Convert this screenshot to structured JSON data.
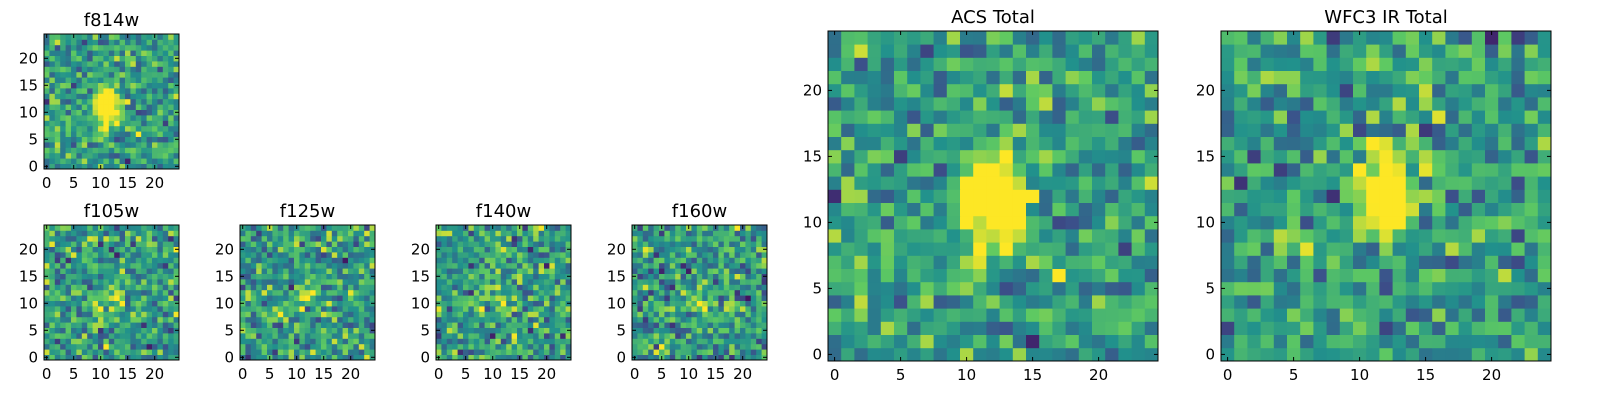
{
  "figure": {
    "colormap": "viridis",
    "colormap_stops": [
      "#440154",
      "#3b528b",
      "#21918c",
      "#5ec962",
      "#fde725"
    ]
  },
  "chart_data": [
    {
      "type": "heatmap",
      "title": "f814w",
      "grid_size": 25,
      "xlim": [
        -0.5,
        24.5
      ],
      "ylim": [
        -0.5,
        24.5
      ],
      "xticks": [
        0,
        5,
        10,
        15,
        20
      ],
      "yticks": [
        0,
        5,
        10,
        15,
        20
      ],
      "xtick_labels": [
        "0",
        "5",
        "10",
        "15",
        "20"
      ],
      "ytick_labels": [
        "0",
        "5",
        "10",
        "15",
        "20"
      ],
      "source": {
        "center": [
          11,
          11.5
        ],
        "sigma": [
          1.5,
          2.2
        ],
        "amplitude": 1.1
      },
      "noise": 0.2,
      "seed": 11
    },
    {
      "type": "heatmap",
      "title": "f105w",
      "grid_size": 25,
      "xlim": [
        -0.5,
        24.5
      ],
      "ylim": [
        -0.5,
        24.5
      ],
      "xticks": [
        0,
        5,
        10,
        15,
        20
      ],
      "yticks": [
        0,
        5,
        10,
        15,
        20
      ],
      "xtick_labels": [
        "0",
        "5",
        "10",
        "15",
        "20"
      ],
      "ytick_labels": [
        "0",
        "5",
        "10",
        "15",
        "20"
      ],
      "source": {
        "center": [
          12,
          10
        ],
        "sigma": [
          1.5,
          2
        ],
        "amplitude": 0.3
      },
      "noise": 0.22,
      "seed": 23
    },
    {
      "type": "heatmap",
      "title": "f125w",
      "grid_size": 25,
      "xlim": [
        -0.5,
        24.5
      ],
      "ylim": [
        -0.5,
        24.5
      ],
      "xticks": [
        0,
        5,
        10,
        15,
        20
      ],
      "yticks": [
        0,
        5,
        10,
        15,
        20
      ],
      "xtick_labels": [
        "0",
        "5",
        "10",
        "15",
        "20"
      ],
      "ytick_labels": [
        "0",
        "5",
        "10",
        "15",
        "20"
      ],
      "source": {
        "center": [
          12,
          12
        ],
        "sigma": [
          1.5,
          2
        ],
        "amplitude": 0.2
      },
      "noise": 0.22,
      "seed": 37
    },
    {
      "type": "heatmap",
      "title": "f140w",
      "grid_size": 25,
      "xlim": [
        -0.5,
        24.5
      ],
      "ylim": [
        -0.5,
        24.5
      ],
      "xticks": [
        0,
        5,
        10,
        15,
        20
      ],
      "yticks": [
        0,
        5,
        10,
        15,
        20
      ],
      "xtick_labels": [
        "0",
        "5",
        "10",
        "15",
        "20"
      ],
      "ytick_labels": [
        "0",
        "5",
        "10",
        "15",
        "20"
      ],
      "source": {
        "center": [
          12,
          12
        ],
        "sigma": [
          1.5,
          2
        ],
        "amplitude": 0.2
      },
      "noise": 0.22,
      "seed": 51
    },
    {
      "type": "heatmap",
      "title": "f160w",
      "grid_size": 25,
      "xlim": [
        -0.5,
        24.5
      ],
      "ylim": [
        -0.5,
        24.5
      ],
      "xticks": [
        0,
        5,
        10,
        15,
        20
      ],
      "yticks": [
        0,
        5,
        10,
        15,
        20
      ],
      "xtick_labels": [
        "0",
        "5",
        "10",
        "15",
        "20"
      ],
      "ytick_labels": [
        "0",
        "5",
        "10",
        "15",
        "20"
      ],
      "source": {
        "center": [
          12,
          11
        ],
        "sigma": [
          1.5,
          2
        ],
        "amplitude": 0.3
      },
      "noise": 0.22,
      "seed": 67
    },
    {
      "type": "heatmap",
      "title": "ACS Total",
      "grid_size": 25,
      "xlim": [
        -0.5,
        24.5
      ],
      "ylim": [
        -0.5,
        24.5
      ],
      "xticks": [
        0,
        5,
        10,
        15,
        20
      ],
      "yticks": [
        0,
        5,
        10,
        15,
        20
      ],
      "xtick_labels": [
        "0",
        "5",
        "10",
        "15",
        "20"
      ],
      "ytick_labels": [
        "0",
        "5",
        "10",
        "15",
        "20"
      ],
      "source": {
        "center": [
          12,
          12
        ],
        "sigma": [
          1.6,
          2.2
        ],
        "amplitude": 1.1
      },
      "noise": 0.2,
      "seed": 11
    },
    {
      "type": "heatmap",
      "title": "WFC3 IR Total",
      "grid_size": 25,
      "xlim": [
        -0.5,
        24.5
      ],
      "ylim": [
        -0.5,
        24.5
      ],
      "xticks": [
        0,
        5,
        10,
        15,
        20
      ],
      "yticks": [
        0,
        5,
        10,
        15,
        20
      ],
      "xtick_labels": [
        "0",
        "5",
        "10",
        "15",
        "20"
      ],
      "ytick_labels": [
        "0",
        "5",
        "10",
        "15",
        "20"
      ],
      "source": {
        "center": [
          12,
          12
        ],
        "sigma": [
          1.4,
          2.0
        ],
        "amplitude": 1.0
      },
      "noise": 0.2,
      "seed": 89
    }
  ]
}
